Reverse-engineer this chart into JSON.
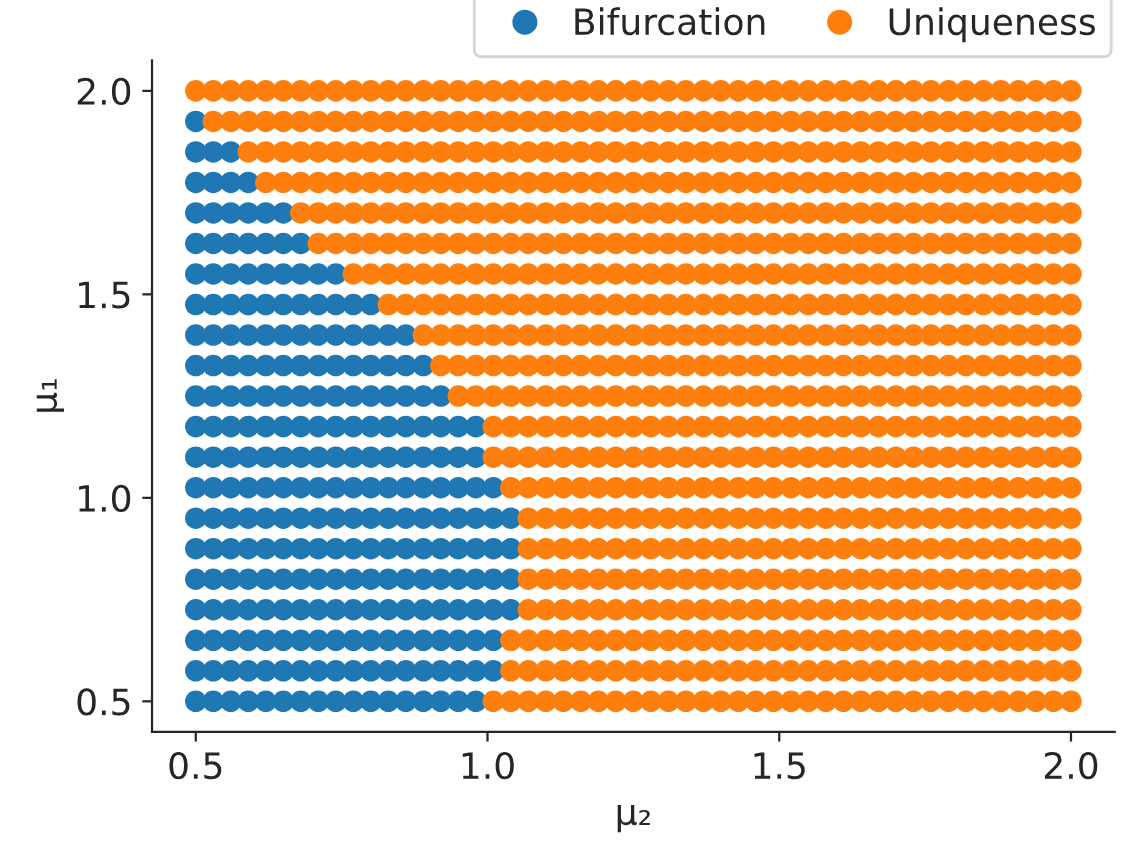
{
  "chart_data": {
    "type": "scatter",
    "xlabel": "μ₂",
    "ylabel": "μ₁",
    "marker": "circle",
    "legend": "top right",
    "xlim": [
      0.425,
      2.075
    ],
    "ylim": [
      0.425,
      2.075
    ],
    "xticks": [
      0.5,
      {
        "value": 1,
        "label": "1.0"
      },
      1.5,
      {
        "value": 2,
        "label": "2.0"
      }
    ],
    "yticks": [
      0.5,
      {
        "value": 1,
        "label": "1.0"
      },
      1.5,
      {
        "value": 2,
        "label": "2.0"
      }
    ],
    "series": [
      {
        "name": "Bifurcation",
        "color": "#1f77b4",
        "x": [
          0.5
        ],
        "values": [
          1.925
        ]
      },
      {
        "color": "#1f77b4",
        "x": [
          0.5,
          0.53,
          0.56
        ],
        "values": [
          1.85,
          1.85,
          1.85
        ]
      },
      {
        "color": "#1f77b4",
        "x": [
          0.5,
          0.53,
          0.56,
          0.59
        ],
        "values": [
          1.775,
          1.775,
          1.775,
          1.775
        ]
      },
      {
        "color": "#1f77b4",
        "x": [
          0.5,
          0.53,
          0.56,
          0.59,
          0.62,
          0.65
        ],
        "values": [
          1.7,
          1.7,
          1.7,
          1.7,
          1.7,
          1.7
        ]
      },
      {
        "color": "#1f77b4",
        "x": [
          0.5,
          0.53,
          0.56,
          0.59,
          0.62,
          0.65,
          0.68
        ],
        "values": [
          1.625,
          1.625,
          1.625,
          1.625,
          1.625,
          1.625,
          1.625
        ]
      },
      {
        "color": "#1f77b4",
        "x": [
          0.5,
          0.53,
          0.56,
          0.59,
          0.62,
          0.65,
          0.68,
          0.71,
          0.74
        ],
        "values": [
          1.55,
          1.55,
          1.55,
          1.55,
          1.55,
          1.55,
          1.55,
          1.55,
          1.55
        ]
      },
      {
        "color": "#1f77b4",
        "x": [
          0.5,
          0.53,
          0.56,
          0.59,
          0.62,
          0.65,
          0.68,
          0.71,
          0.74,
          0.77,
          0.8
        ],
        "values": [
          1.475,
          1.475,
          1.475,
          1.475,
          1.475,
          1.475,
          1.475,
          1.475,
          1.475,
          1.475,
          1.475
        ]
      },
      {
        "color": "#1f77b4",
        "x": [
          0.5,
          0.53,
          0.56,
          0.59,
          0.62,
          0.65,
          0.68,
          0.71,
          0.74,
          0.77,
          0.8,
          0.83,
          0.86
        ],
        "values": [
          1.4,
          1.4,
          1.4,
          1.4,
          1.4,
          1.4,
          1.4,
          1.4,
          1.4,
          1.4,
          1.4,
          1.4,
          1.4
        ]
      },
      {
        "color": "#1f77b4",
        "x": [
          0.5,
          0.53,
          0.56,
          0.59,
          0.62,
          0.65,
          0.68,
          0.71,
          0.74,
          0.77,
          0.8,
          0.83,
          0.86,
          0.89
        ],
        "values": [
          1.325,
          1.325,
          1.325,
          1.325,
          1.325,
          1.325,
          1.325,
          1.325,
          1.325,
          1.325,
          1.325,
          1.325,
          1.325,
          1.325
        ]
      },
      {
        "color": "#1f77b4",
        "x": [
          0.5,
          0.53,
          0.56,
          0.59,
          0.62,
          0.65,
          0.68,
          0.71,
          0.74,
          0.77,
          0.8,
          0.83,
          0.86,
          0.89,
          0.92
        ],
        "values": [
          1.25,
          1.25,
          1.25,
          1.25,
          1.25,
          1.25,
          1.25,
          1.25,
          1.25,
          1.25,
          1.25,
          1.25,
          1.25,
          1.25,
          1.25
        ]
      },
      {
        "color": "#1f77b4",
        "x": [
          0.5,
          0.53,
          0.56,
          0.59,
          0.62,
          0.65,
          0.68,
          0.71,
          0.74,
          0.77,
          0.8,
          0.83,
          0.86,
          0.89,
          0.92,
          0.95,
          0.98
        ],
        "values": [
          1.175,
          1.175,
          1.175,
          1.175,
          1.175,
          1.175,
          1.175,
          1.175,
          1.175,
          1.175,
          1.175,
          1.175,
          1.175,
          1.175,
          1.175,
          1.175,
          1.175
        ]
      },
      {
        "color": "#1f77b4",
        "x": [
          0.5,
          0.53,
          0.56,
          0.59,
          0.62,
          0.65,
          0.68,
          0.71,
          0.74,
          0.77,
          0.8,
          0.83,
          0.86,
          0.89,
          0.92,
          0.95,
          0.98
        ],
        "values": [
          1.1,
          1.1,
          1.1,
          1.1,
          1.1,
          1.1,
          1.1,
          1.1,
          1.1,
          1.1,
          1.1,
          1.1,
          1.1,
          1.1,
          1.1,
          1.1,
          1.1
        ]
      },
      {
        "color": "#1f77b4",
        "x": [
          0.5,
          0.53,
          0.56,
          0.59,
          0.62,
          0.65,
          0.68,
          0.71,
          0.74,
          0.77,
          0.8,
          0.83,
          0.86,
          0.89,
          0.92,
          0.95,
          0.98,
          1.01
        ],
        "values": [
          1.025,
          1.025,
          1.025,
          1.025,
          1.025,
          1.025,
          1.025,
          1.025,
          1.025,
          1.025,
          1.025,
          1.025,
          1.025,
          1.025,
          1.025,
          1.025,
          1.025,
          1.025
        ]
      },
      {
        "color": "#1f77b4",
        "x": [
          0.5,
          0.53,
          0.56,
          0.59,
          0.62,
          0.65,
          0.68,
          0.71,
          0.74,
          0.77,
          0.8,
          0.83,
          0.86,
          0.89,
          0.92,
          0.95,
          0.98,
          1.01,
          1.04
        ],
        "values": [
          0.95,
          0.95,
          0.95,
          0.95,
          0.95,
          0.95,
          0.95,
          0.95,
          0.95,
          0.95,
          0.95,
          0.95,
          0.95,
          0.95,
          0.95,
          0.95,
          0.95,
          0.95,
          0.95
        ]
      },
      {
        "color": "#1f77b4",
        "x": [
          0.5,
          0.53,
          0.56,
          0.59,
          0.62,
          0.65,
          0.68,
          0.71,
          0.74,
          0.77,
          0.8,
          0.83,
          0.86,
          0.89,
          0.92,
          0.95,
          0.98,
          1.01,
          1.04
        ],
        "values": [
          0.875,
          0.875,
          0.875,
          0.875,
          0.875,
          0.875,
          0.875,
          0.875,
          0.875,
          0.875,
          0.875,
          0.875,
          0.875,
          0.875,
          0.875,
          0.875,
          0.875,
          0.875,
          0.875
        ]
      },
      {
        "color": "#1f77b4",
        "x": [
          0.5,
          0.53,
          0.56,
          0.59,
          0.62,
          0.65,
          0.68,
          0.71,
          0.74,
          0.77,
          0.8,
          0.83,
          0.86,
          0.89,
          0.92,
          0.95,
          0.98,
          1.01,
          1.04
        ],
        "values": [
          0.8,
          0.8,
          0.8,
          0.8,
          0.8,
          0.8,
          0.8,
          0.8,
          0.8,
          0.8,
          0.8,
          0.8,
          0.8,
          0.8,
          0.8,
          0.8,
          0.8,
          0.8,
          0.8
        ]
      },
      {
        "color": "#1f77b4",
        "x": [
          0.5,
          0.53,
          0.56,
          0.59,
          0.62,
          0.65,
          0.68,
          0.71,
          0.74,
          0.77,
          0.8,
          0.83,
          0.86,
          0.89,
          0.92,
          0.95,
          0.98,
          1.01,
          1.04
        ],
        "values": [
          0.725,
          0.725,
          0.725,
          0.725,
          0.725,
          0.725,
          0.725,
          0.725,
          0.725,
          0.725,
          0.725,
          0.725,
          0.725,
          0.725,
          0.725,
          0.725,
          0.725,
          0.725,
          0.725
        ]
      },
      {
        "color": "#1f77b4",
        "x": [
          0.5,
          0.53,
          0.56,
          0.59,
          0.62,
          0.65,
          0.68,
          0.71,
          0.74,
          0.77,
          0.8,
          0.83,
          0.86,
          0.89,
          0.92,
          0.95,
          0.98,
          1.01
        ],
        "values": [
          0.65,
          0.65,
          0.65,
          0.65,
          0.65,
          0.65,
          0.65,
          0.65,
          0.65,
          0.65,
          0.65,
          0.65,
          0.65,
          0.65,
          0.65,
          0.65,
          0.65,
          0.65
        ]
      },
      {
        "color": "#1f77b4",
        "x": [
          0.5,
          0.53,
          0.56,
          0.59,
          0.62,
          0.65,
          0.68,
          0.71,
          0.74,
          0.77,
          0.8,
          0.83,
          0.86,
          0.89,
          0.92,
          0.95,
          0.98,
          1.01
        ],
        "values": [
          0.575,
          0.575,
          0.575,
          0.575,
          0.575,
          0.575,
          0.575,
          0.575,
          0.575,
          0.575,
          0.575,
          0.575,
          0.575,
          0.575,
          0.575,
          0.575,
          0.575,
          0.575
        ]
      },
      {
        "color": "#1f77b4",
        "x": [
          0.5,
          0.53,
          0.56,
          0.59,
          0.62,
          0.65,
          0.68,
          0.71,
          0.74,
          0.77,
          0.8,
          0.83,
          0.86,
          0.89,
          0.92,
          0.95,
          0.98
        ],
        "values": [
          0.5,
          0.5,
          0.5,
          0.5,
          0.5,
          0.5,
          0.5,
          0.5,
          0.5,
          0.5,
          0.5,
          0.5,
          0.5,
          0.5,
          0.5,
          0.5,
          0.5
        ]
      },
      {
        "name": "Uniqueness",
        "color": "#ff7f0e",
        "x": [
          0.5,
          0.53,
          0.56,
          0.59,
          0.62,
          0.65,
          0.68,
          0.71,
          0.74,
          0.77,
          0.8,
          0.83,
          0.86,
          0.89,
          0.92,
          0.95,
          0.98,
          1.01,
          1.04,
          1.07,
          1.1,
          1.13,
          1.16,
          1.19,
          1.22,
          1.25,
          1.28,
          1.31,
          1.34,
          1.37,
          1.4,
          1.43,
          1.46,
          1.49,
          1.52,
          1.55,
          1.58,
          1.61,
          1.64,
          1.67,
          1.7,
          1.73,
          1.76,
          1.79,
          1.82,
          1.85,
          1.88,
          1.91,
          1.94,
          1.97,
          2.0
        ],
        "values": [
          2.0,
          2.0,
          2.0,
          2.0,
          2.0,
          2.0,
          2.0,
          2.0,
          2.0,
          2.0,
          2.0,
          2.0,
          2.0,
          2.0,
          2.0,
          2.0,
          2.0,
          2.0,
          2.0,
          2.0,
          2.0,
          2.0,
          2.0,
          2.0,
          2.0,
          2.0,
          2.0,
          2.0,
          2.0,
          2.0,
          2.0,
          2.0,
          2.0,
          2.0,
          2.0,
          2.0,
          2.0,
          2.0,
          2.0,
          2.0,
          2.0,
          2.0,
          2.0,
          2.0,
          2.0,
          2.0,
          2.0,
          2.0,
          2.0,
          2.0,
          2.0
        ]
      },
      {
        "color": "#ff7f0e",
        "x": [
          0.53,
          0.56,
          0.59,
          0.62,
          0.65,
          0.68,
          0.71,
          0.74,
          0.77,
          0.8,
          0.83,
          0.86,
          0.89,
          0.92,
          0.95,
          0.98,
          1.01,
          1.04,
          1.07,
          1.1,
          1.13,
          1.16,
          1.19,
          1.22,
          1.25,
          1.28,
          1.31,
          1.34,
          1.37,
          1.4,
          1.43,
          1.46,
          1.49,
          1.52,
          1.55,
          1.58,
          1.61,
          1.64,
          1.67,
          1.7,
          1.73,
          1.76,
          1.79,
          1.82,
          1.85,
          1.88,
          1.91,
          1.94,
          1.97,
          2.0
        ],
        "values": [
          1.925,
          1.925,
          1.925,
          1.925,
          1.925,
          1.925,
          1.925,
          1.925,
          1.925,
          1.925,
          1.925,
          1.925,
          1.925,
          1.925,
          1.925,
          1.925,
          1.925,
          1.925,
          1.925,
          1.925,
          1.925,
          1.925,
          1.925,
          1.925,
          1.925,
          1.925,
          1.925,
          1.925,
          1.925,
          1.925,
          1.925,
          1.925,
          1.925,
          1.925,
          1.925,
          1.925,
          1.925,
          1.925,
          1.925,
          1.925,
          1.925,
          1.925,
          1.925,
          1.925,
          1.925,
          1.925,
          1.925,
          1.925,
          1.925,
          1.925
        ]
      },
      {
        "color": "#ff7f0e",
        "x": [
          0.59,
          0.62,
          0.65,
          0.68,
          0.71,
          0.74,
          0.77,
          0.8,
          0.83,
          0.86,
          0.89,
          0.92,
          0.95,
          0.98,
          1.01,
          1.04,
          1.07,
          1.1,
          1.13,
          1.16,
          1.19,
          1.22,
          1.25,
          1.28,
          1.31,
          1.34,
          1.37,
          1.4,
          1.43,
          1.46,
          1.49,
          1.52,
          1.55,
          1.58,
          1.61,
          1.64,
          1.67,
          1.7,
          1.73,
          1.76,
          1.79,
          1.82,
          1.85,
          1.88,
          1.91,
          1.94,
          1.97,
          2.0
        ],
        "values": [
          1.85,
          1.85,
          1.85,
          1.85,
          1.85,
          1.85,
          1.85,
          1.85,
          1.85,
          1.85,
          1.85,
          1.85,
          1.85,
          1.85,
          1.85,
          1.85,
          1.85,
          1.85,
          1.85,
          1.85,
          1.85,
          1.85,
          1.85,
          1.85,
          1.85,
          1.85,
          1.85,
          1.85,
          1.85,
          1.85,
          1.85,
          1.85,
          1.85,
          1.85,
          1.85,
          1.85,
          1.85,
          1.85,
          1.85,
          1.85,
          1.85,
          1.85,
          1.85,
          1.85,
          1.85,
          1.85,
          1.85,
          1.85
        ]
      },
      {
        "color": "#ff7f0e",
        "x": [
          0.62,
          0.65,
          0.68,
          0.71,
          0.74,
          0.77,
          0.8,
          0.83,
          0.86,
          0.89,
          0.92,
          0.95,
          0.98,
          1.01,
          1.04,
          1.07,
          1.1,
          1.13,
          1.16,
          1.19,
          1.22,
          1.25,
          1.28,
          1.31,
          1.34,
          1.37,
          1.4,
          1.43,
          1.46,
          1.49,
          1.52,
          1.55,
          1.58,
          1.61,
          1.64,
          1.67,
          1.7,
          1.73,
          1.76,
          1.79,
          1.82,
          1.85,
          1.88,
          1.91,
          1.94,
          1.97,
          2.0
        ],
        "values": [
          1.775,
          1.775,
          1.775,
          1.775,
          1.775,
          1.775,
          1.775,
          1.775,
          1.775,
          1.775,
          1.775,
          1.775,
          1.775,
          1.775,
          1.775,
          1.775,
          1.775,
          1.775,
          1.775,
          1.775,
          1.775,
          1.775,
          1.775,
          1.775,
          1.775,
          1.775,
          1.775,
          1.775,
          1.775,
          1.775,
          1.775,
          1.775,
          1.775,
          1.775,
          1.775,
          1.775,
          1.775,
          1.775,
          1.775,
          1.775,
          1.775,
          1.775,
          1.775,
          1.775,
          1.775,
          1.775,
          1.775
        ]
      },
      {
        "color": "#ff7f0e",
        "x": [
          0.68,
          0.71,
          0.74,
          0.77,
          0.8,
          0.83,
          0.86,
          0.89,
          0.92,
          0.95,
          0.98,
          1.01,
          1.04,
          1.07,
          1.1,
          1.13,
          1.16,
          1.19,
          1.22,
          1.25,
          1.28,
          1.31,
          1.34,
          1.37,
          1.4,
          1.43,
          1.46,
          1.49,
          1.52,
          1.55,
          1.58,
          1.61,
          1.64,
          1.67,
          1.7,
          1.73,
          1.76,
          1.79,
          1.82,
          1.85,
          1.88,
          1.91,
          1.94,
          1.97,
          2.0
        ],
        "values": [
          1.7,
          1.7,
          1.7,
          1.7,
          1.7,
          1.7,
          1.7,
          1.7,
          1.7,
          1.7,
          1.7,
          1.7,
          1.7,
          1.7,
          1.7,
          1.7,
          1.7,
          1.7,
          1.7,
          1.7,
          1.7,
          1.7,
          1.7,
          1.7,
          1.7,
          1.7,
          1.7,
          1.7,
          1.7,
          1.7,
          1.7,
          1.7,
          1.7,
          1.7,
          1.7,
          1.7,
          1.7,
          1.7,
          1.7,
          1.7,
          1.7,
          1.7,
          1.7,
          1.7,
          1.7
        ]
      },
      {
        "color": "#ff7f0e",
        "x": [
          0.71,
          0.74,
          0.77,
          0.8,
          0.83,
          0.86,
          0.89,
          0.92,
          0.95,
          0.98,
          1.01,
          1.04,
          1.07,
          1.1,
          1.13,
          1.16,
          1.19,
          1.22,
          1.25,
          1.28,
          1.31,
          1.34,
          1.37,
          1.4,
          1.43,
          1.46,
          1.49,
          1.52,
          1.55,
          1.58,
          1.61,
          1.64,
          1.67,
          1.7,
          1.73,
          1.76,
          1.79,
          1.82,
          1.85,
          1.88,
          1.91,
          1.94,
          1.97,
          2.0
        ],
        "values": [
          1.625,
          1.625,
          1.625,
          1.625,
          1.625,
          1.625,
          1.625,
          1.625,
          1.625,
          1.625,
          1.625,
          1.625,
          1.625,
          1.625,
          1.625,
          1.625,
          1.625,
          1.625,
          1.625,
          1.625,
          1.625,
          1.625,
          1.625,
          1.625,
          1.625,
          1.625,
          1.625,
          1.625,
          1.625,
          1.625,
          1.625,
          1.625,
          1.625,
          1.625,
          1.625,
          1.625,
          1.625,
          1.625,
          1.625,
          1.625,
          1.625,
          1.625,
          1.625,
          1.625
        ]
      },
      {
        "color": "#ff7f0e",
        "x": [
          0.77,
          0.8,
          0.83,
          0.86,
          0.89,
          0.92,
          0.95,
          0.98,
          1.01,
          1.04,
          1.07,
          1.1,
          1.13,
          1.16,
          1.19,
          1.22,
          1.25,
          1.28,
          1.31,
          1.34,
          1.37,
          1.4,
          1.43,
          1.46,
          1.49,
          1.52,
          1.55,
          1.58,
          1.61,
          1.64,
          1.67,
          1.7,
          1.73,
          1.76,
          1.79,
          1.82,
          1.85,
          1.88,
          1.91,
          1.94,
          1.97,
          2.0
        ],
        "values": [
          1.55,
          1.55,
          1.55,
          1.55,
          1.55,
          1.55,
          1.55,
          1.55,
          1.55,
          1.55,
          1.55,
          1.55,
          1.55,
          1.55,
          1.55,
          1.55,
          1.55,
          1.55,
          1.55,
          1.55,
          1.55,
          1.55,
          1.55,
          1.55,
          1.55,
          1.55,
          1.55,
          1.55,
          1.55,
          1.55,
          1.55,
          1.55,
          1.55,
          1.55,
          1.55,
          1.55,
          1.55,
          1.55,
          1.55,
          1.55,
          1.55,
          1.55
        ]
      },
      {
        "color": "#ff7f0e",
        "x": [
          0.83,
          0.86,
          0.89,
          0.92,
          0.95,
          0.98,
          1.01,
          1.04,
          1.07,
          1.1,
          1.13,
          1.16,
          1.19,
          1.22,
          1.25,
          1.28,
          1.31,
          1.34,
          1.37,
          1.4,
          1.43,
          1.46,
          1.49,
          1.52,
          1.55,
          1.58,
          1.61,
          1.64,
          1.67,
          1.7,
          1.73,
          1.76,
          1.79,
          1.82,
          1.85,
          1.88,
          1.91,
          1.94,
          1.97,
          2.0
        ],
        "values": [
          1.475,
          1.475,
          1.475,
          1.475,
          1.475,
          1.475,
          1.475,
          1.475,
          1.475,
          1.475,
          1.475,
          1.475,
          1.475,
          1.475,
          1.475,
          1.475,
          1.475,
          1.475,
          1.475,
          1.475,
          1.475,
          1.475,
          1.475,
          1.475,
          1.475,
          1.475,
          1.475,
          1.475,
          1.475,
          1.475,
          1.475,
          1.475,
          1.475,
          1.475,
          1.475,
          1.475,
          1.475,
          1.475,
          1.475,
          1.475
        ]
      },
      {
        "color": "#ff7f0e",
        "x": [
          0.89,
          0.92,
          0.95,
          0.98,
          1.01,
          1.04,
          1.07,
          1.1,
          1.13,
          1.16,
          1.19,
          1.22,
          1.25,
          1.28,
          1.31,
          1.34,
          1.37,
          1.4,
          1.43,
          1.46,
          1.49,
          1.52,
          1.55,
          1.58,
          1.61,
          1.64,
          1.67,
          1.7,
          1.73,
          1.76,
          1.79,
          1.82,
          1.85,
          1.88,
          1.91,
          1.94,
          1.97,
          2.0
        ],
        "values": [
          1.4,
          1.4,
          1.4,
          1.4,
          1.4,
          1.4,
          1.4,
          1.4,
          1.4,
          1.4,
          1.4,
          1.4,
          1.4,
          1.4,
          1.4,
          1.4,
          1.4,
          1.4,
          1.4,
          1.4,
          1.4,
          1.4,
          1.4,
          1.4,
          1.4,
          1.4,
          1.4,
          1.4,
          1.4,
          1.4,
          1.4,
          1.4,
          1.4,
          1.4,
          1.4,
          1.4,
          1.4,
          1.4
        ]
      },
      {
        "color": "#ff7f0e",
        "x": [
          0.92,
          0.95,
          0.98,
          1.01,
          1.04,
          1.07,
          1.1,
          1.13,
          1.16,
          1.19,
          1.22,
          1.25,
          1.28,
          1.31,
          1.34,
          1.37,
          1.4,
          1.43,
          1.46,
          1.49,
          1.52,
          1.55,
          1.58,
          1.61,
          1.64,
          1.67,
          1.7,
          1.73,
          1.76,
          1.79,
          1.82,
          1.85,
          1.88,
          1.91,
          1.94,
          1.97,
          2.0
        ],
        "values": [
          1.325,
          1.325,
          1.325,
          1.325,
          1.325,
          1.325,
          1.325,
          1.325,
          1.325,
          1.325,
          1.325,
          1.325,
          1.325,
          1.325,
          1.325,
          1.325,
          1.325,
          1.325,
          1.325,
          1.325,
          1.325,
          1.325,
          1.325,
          1.325,
          1.325,
          1.325,
          1.325,
          1.325,
          1.325,
          1.325,
          1.325,
          1.325,
          1.325,
          1.325,
          1.325,
          1.325,
          1.325
        ]
      },
      {
        "color": "#ff7f0e",
        "x": [
          0.95,
          0.98,
          1.01,
          1.04,
          1.07,
          1.1,
          1.13,
          1.16,
          1.19,
          1.22,
          1.25,
          1.28,
          1.31,
          1.34,
          1.37,
          1.4,
          1.43,
          1.46,
          1.49,
          1.52,
          1.55,
          1.58,
          1.61,
          1.64,
          1.67,
          1.7,
          1.73,
          1.76,
          1.79,
          1.82,
          1.85,
          1.88,
          1.91,
          1.94,
          1.97,
          2.0
        ],
        "values": [
          1.25,
          1.25,
          1.25,
          1.25,
          1.25,
          1.25,
          1.25,
          1.25,
          1.25,
          1.25,
          1.25,
          1.25,
          1.25,
          1.25,
          1.25,
          1.25,
          1.25,
          1.25,
          1.25,
          1.25,
          1.25,
          1.25,
          1.25,
          1.25,
          1.25,
          1.25,
          1.25,
          1.25,
          1.25,
          1.25,
          1.25,
          1.25,
          1.25,
          1.25,
          1.25,
          1.25
        ]
      },
      {
        "color": "#ff7f0e",
        "x": [
          1.01,
          1.04,
          1.07,
          1.1,
          1.13,
          1.16,
          1.19,
          1.22,
          1.25,
          1.28,
          1.31,
          1.34,
          1.37,
          1.4,
          1.43,
          1.46,
          1.49,
          1.52,
          1.55,
          1.58,
          1.61,
          1.64,
          1.67,
          1.7,
          1.73,
          1.76,
          1.79,
          1.82,
          1.85,
          1.88,
          1.91,
          1.94,
          1.97,
          2.0
        ],
        "values": [
          1.175,
          1.175,
          1.175,
          1.175,
          1.175,
          1.175,
          1.175,
          1.175,
          1.175,
          1.175,
          1.175,
          1.175,
          1.175,
          1.175,
          1.175,
          1.175,
          1.175,
          1.175,
          1.175,
          1.175,
          1.175,
          1.175,
          1.175,
          1.175,
          1.175,
          1.175,
          1.175,
          1.175,
          1.175,
          1.175,
          1.175,
          1.175,
          1.175,
          1.175
        ]
      },
      {
        "color": "#ff7f0e",
        "x": [
          1.01,
          1.04,
          1.07,
          1.1,
          1.13,
          1.16,
          1.19,
          1.22,
          1.25,
          1.28,
          1.31,
          1.34,
          1.37,
          1.4,
          1.43,
          1.46,
          1.49,
          1.52,
          1.55,
          1.58,
          1.61,
          1.64,
          1.67,
          1.7,
          1.73,
          1.76,
          1.79,
          1.82,
          1.85,
          1.88,
          1.91,
          1.94,
          1.97,
          2.0
        ],
        "values": [
          1.1,
          1.1,
          1.1,
          1.1,
          1.1,
          1.1,
          1.1,
          1.1,
          1.1,
          1.1,
          1.1,
          1.1,
          1.1,
          1.1,
          1.1,
          1.1,
          1.1,
          1.1,
          1.1,
          1.1,
          1.1,
          1.1,
          1.1,
          1.1,
          1.1,
          1.1,
          1.1,
          1.1,
          1.1,
          1.1,
          1.1,
          1.1,
          1.1,
          1.1
        ]
      },
      {
        "color": "#ff7f0e",
        "x": [
          1.04,
          1.07,
          1.1,
          1.13,
          1.16,
          1.19,
          1.22,
          1.25,
          1.28,
          1.31,
          1.34,
          1.37,
          1.4,
          1.43,
          1.46,
          1.49,
          1.52,
          1.55,
          1.58,
          1.61,
          1.64,
          1.67,
          1.7,
          1.73,
          1.76,
          1.79,
          1.82,
          1.85,
          1.88,
          1.91,
          1.94,
          1.97,
          2.0
        ],
        "values": [
          1.025,
          1.025,
          1.025,
          1.025,
          1.025,
          1.025,
          1.025,
          1.025,
          1.025,
          1.025,
          1.025,
          1.025,
          1.025,
          1.025,
          1.025,
          1.025,
          1.025,
          1.025,
          1.025,
          1.025,
          1.025,
          1.025,
          1.025,
          1.025,
          1.025,
          1.025,
          1.025,
          1.025,
          1.025,
          1.025,
          1.025,
          1.025,
          1.025
        ]
      },
      {
        "color": "#ff7f0e",
        "x": [
          1.07,
          1.1,
          1.13,
          1.16,
          1.19,
          1.22,
          1.25,
          1.28,
          1.31,
          1.34,
          1.37,
          1.4,
          1.43,
          1.46,
          1.49,
          1.52,
          1.55,
          1.58,
          1.61,
          1.64,
          1.67,
          1.7,
          1.73,
          1.76,
          1.79,
          1.82,
          1.85,
          1.88,
          1.91,
          1.94,
          1.97,
          2.0
        ],
        "values": [
          0.95,
          0.95,
          0.95,
          0.95,
          0.95,
          0.95,
          0.95,
          0.95,
          0.95,
          0.95,
          0.95,
          0.95,
          0.95,
          0.95,
          0.95,
          0.95,
          0.95,
          0.95,
          0.95,
          0.95,
          0.95,
          0.95,
          0.95,
          0.95,
          0.95,
          0.95,
          0.95,
          0.95,
          0.95,
          0.95,
          0.95,
          0.95
        ]
      },
      {
        "color": "#ff7f0e",
        "x": [
          1.07,
          1.1,
          1.13,
          1.16,
          1.19,
          1.22,
          1.25,
          1.28,
          1.31,
          1.34,
          1.37,
          1.4,
          1.43,
          1.46,
          1.49,
          1.52,
          1.55,
          1.58,
          1.61,
          1.64,
          1.67,
          1.7,
          1.73,
          1.76,
          1.79,
          1.82,
          1.85,
          1.88,
          1.91,
          1.94,
          1.97,
          2.0
        ],
        "values": [
          0.875,
          0.875,
          0.875,
          0.875,
          0.875,
          0.875,
          0.875,
          0.875,
          0.875,
          0.875,
          0.875,
          0.875,
          0.875,
          0.875,
          0.875,
          0.875,
          0.875,
          0.875,
          0.875,
          0.875,
          0.875,
          0.875,
          0.875,
          0.875,
          0.875,
          0.875,
          0.875,
          0.875,
          0.875,
          0.875,
          0.875,
          0.875
        ]
      },
      {
        "color": "#ff7f0e",
        "x": [
          1.07,
          1.1,
          1.13,
          1.16,
          1.19,
          1.22,
          1.25,
          1.28,
          1.31,
          1.34,
          1.37,
          1.4,
          1.43,
          1.46,
          1.49,
          1.52,
          1.55,
          1.58,
          1.61,
          1.64,
          1.67,
          1.7,
          1.73,
          1.76,
          1.79,
          1.82,
          1.85,
          1.88,
          1.91,
          1.94,
          1.97,
          2.0
        ],
        "values": [
          0.8,
          0.8,
          0.8,
          0.8,
          0.8,
          0.8,
          0.8,
          0.8,
          0.8,
          0.8,
          0.8,
          0.8,
          0.8,
          0.8,
          0.8,
          0.8,
          0.8,
          0.8,
          0.8,
          0.8,
          0.8,
          0.8,
          0.8,
          0.8,
          0.8,
          0.8,
          0.8,
          0.8,
          0.8,
          0.8,
          0.8,
          0.8
        ]
      },
      {
        "color": "#ff7f0e",
        "x": [
          1.07,
          1.1,
          1.13,
          1.16,
          1.19,
          1.22,
          1.25,
          1.28,
          1.31,
          1.34,
          1.37,
          1.4,
          1.43,
          1.46,
          1.49,
          1.52,
          1.55,
          1.58,
          1.61,
          1.64,
          1.67,
          1.7,
          1.73,
          1.76,
          1.79,
          1.82,
          1.85,
          1.88,
          1.91,
          1.94,
          1.97,
          2.0
        ],
        "values": [
          0.725,
          0.725,
          0.725,
          0.725,
          0.725,
          0.725,
          0.725,
          0.725,
          0.725,
          0.725,
          0.725,
          0.725,
          0.725,
          0.725,
          0.725,
          0.725,
          0.725,
          0.725,
          0.725,
          0.725,
          0.725,
          0.725,
          0.725,
          0.725,
          0.725,
          0.725,
          0.725,
          0.725,
          0.725,
          0.725,
          0.725,
          0.725
        ]
      },
      {
        "color": "#ff7f0e",
        "x": [
          1.04,
          1.07,
          1.1,
          1.13,
          1.16,
          1.19,
          1.22,
          1.25,
          1.28,
          1.31,
          1.34,
          1.37,
          1.4,
          1.43,
          1.46,
          1.49,
          1.52,
          1.55,
          1.58,
          1.61,
          1.64,
          1.67,
          1.7,
          1.73,
          1.76,
          1.79,
          1.82,
          1.85,
          1.88,
          1.91,
          1.94,
          1.97,
          2.0
        ],
        "values": [
          0.65,
          0.65,
          0.65,
          0.65,
          0.65,
          0.65,
          0.65,
          0.65,
          0.65,
          0.65,
          0.65,
          0.65,
          0.65,
          0.65,
          0.65,
          0.65,
          0.65,
          0.65,
          0.65,
          0.65,
          0.65,
          0.65,
          0.65,
          0.65,
          0.65,
          0.65,
          0.65,
          0.65,
          0.65,
          0.65,
          0.65,
          0.65,
          0.65
        ]
      },
      {
        "color": "#ff7f0e",
        "x": [
          1.04,
          1.07,
          1.1,
          1.13,
          1.16,
          1.19,
          1.22,
          1.25,
          1.28,
          1.31,
          1.34,
          1.37,
          1.4,
          1.43,
          1.46,
          1.49,
          1.52,
          1.55,
          1.58,
          1.61,
          1.64,
          1.67,
          1.7,
          1.73,
          1.76,
          1.79,
          1.82,
          1.85,
          1.88,
          1.91,
          1.94,
          1.97,
          2.0
        ],
        "values": [
          0.575,
          0.575,
          0.575,
          0.575,
          0.575,
          0.575,
          0.575,
          0.575,
          0.575,
          0.575,
          0.575,
          0.575,
          0.575,
          0.575,
          0.575,
          0.575,
          0.575,
          0.575,
          0.575,
          0.575,
          0.575,
          0.575,
          0.575,
          0.575,
          0.575,
          0.575,
          0.575,
          0.575,
          0.575,
          0.575,
          0.575,
          0.575,
          0.575
        ]
      },
      {
        "color": "#ff7f0e",
        "x": [
          1.01,
          1.04,
          1.07,
          1.1,
          1.13,
          1.16,
          1.19,
          1.22,
          1.25,
          1.28,
          1.31,
          1.34,
          1.37,
          1.4,
          1.43,
          1.46,
          1.49,
          1.52,
          1.55,
          1.58,
          1.61,
          1.64,
          1.67,
          1.7,
          1.73,
          1.76,
          1.79,
          1.82,
          1.85,
          1.88,
          1.91,
          1.94,
          1.97,
          2.0
        ],
        "values": [
          0.5,
          0.5,
          0.5,
          0.5,
          0.5,
          0.5,
          0.5,
          0.5,
          0.5,
          0.5,
          0.5,
          0.5,
          0.5,
          0.5,
          0.5,
          0.5,
          0.5,
          0.5,
          0.5,
          0.5,
          0.5,
          0.5,
          0.5,
          0.5,
          0.5,
          0.5,
          0.5,
          0.5,
          0.5,
          0.5,
          0.5,
          0.5,
          0.5,
          0.5
        ]
      }
    ]
  }
}
